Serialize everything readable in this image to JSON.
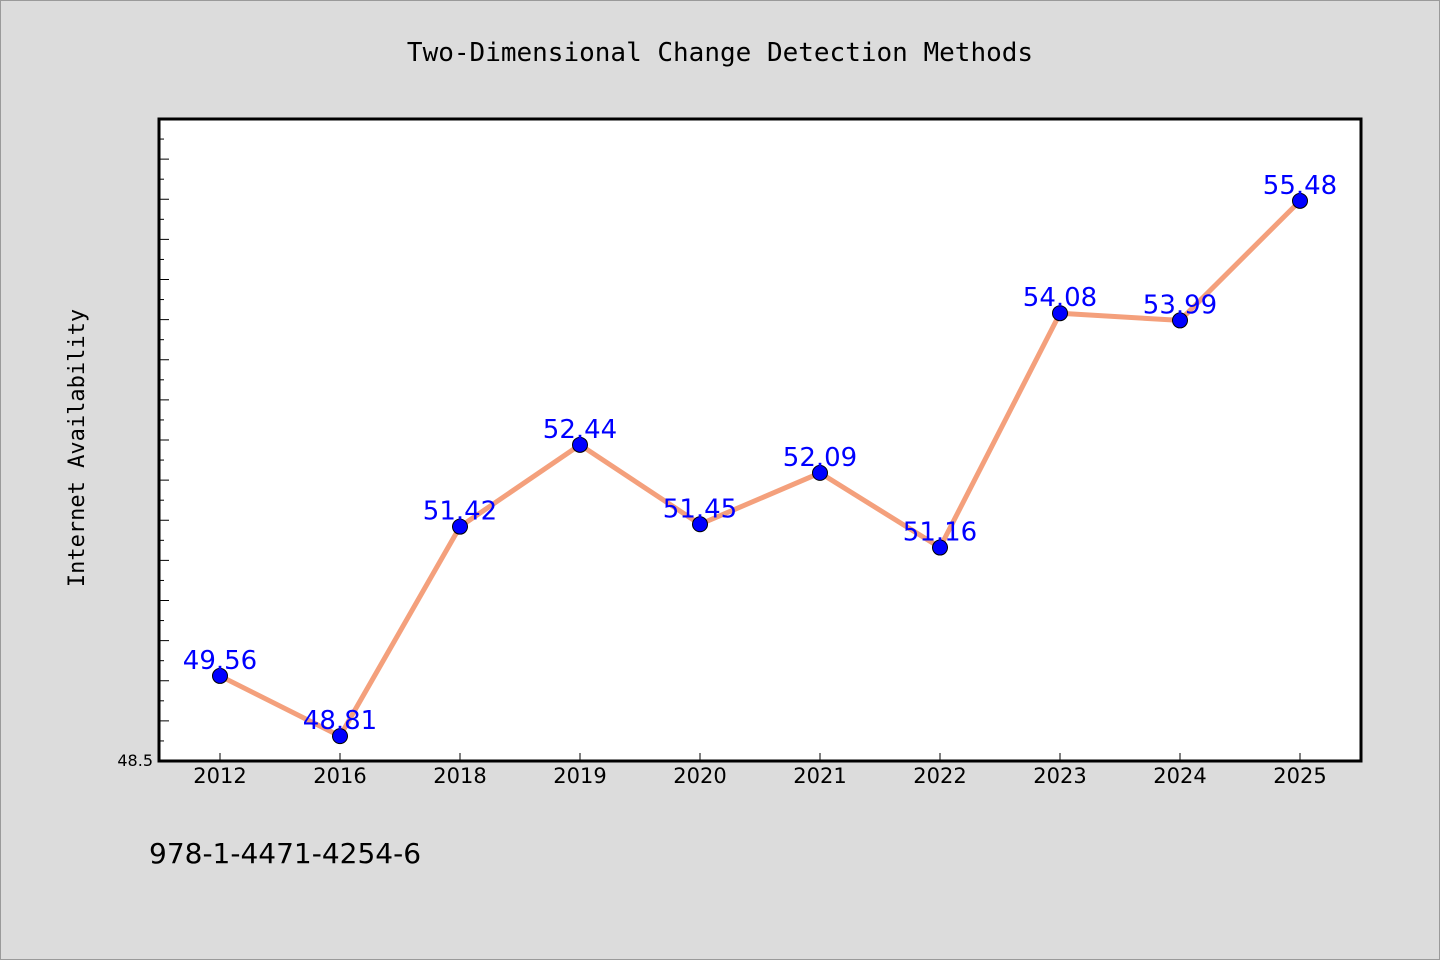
{
  "chart_data": {
    "type": "line",
    "title": "Two-Dimensional Change Detection Methods",
    "xlabel": "",
    "ylabel": "Internet Availability",
    "categories": [
      "2012",
      "2016",
      "2018",
      "2019",
      "2020",
      "2021",
      "2022",
      "2023",
      "2024",
      "2025"
    ],
    "series": [
      {
        "values": [
          49.56,
          48.81,
          51.42,
          52.44,
          51.45,
          52.09,
          51.16,
          54.08,
          53.99,
          55.48
        ]
      }
    ],
    "data_labels": [
      "49.56",
      "48.81",
      "51.42",
      "52.44",
      "51.45",
      "52.09",
      "51.16",
      "54.08",
      "53.99",
      "55.48"
    ],
    "ylim": [
      48.5,
      56.5
    ],
    "y_min_label": "48.5",
    "grid": false,
    "legend": "none",
    "line_color": "#f4a07c",
    "marker_color": "#0000ff",
    "label_color": "#0000ff"
  },
  "footer": {
    "isbn": "978-1-4471-4254-6"
  }
}
